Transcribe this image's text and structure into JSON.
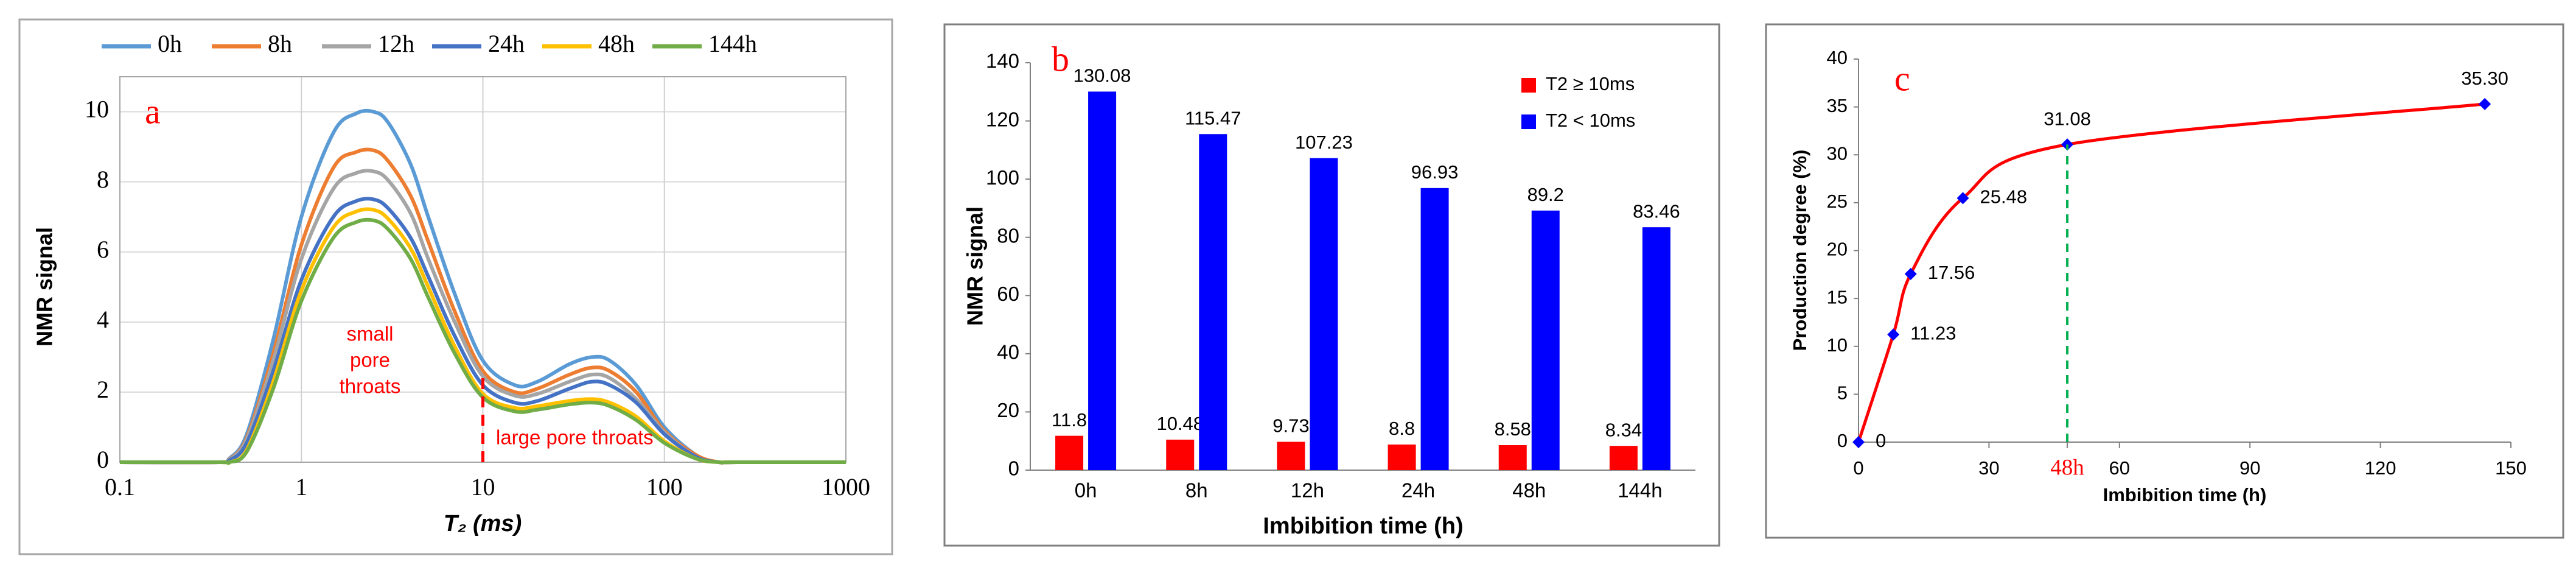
{
  "chart_data": [
    {
      "type": "line",
      "panel_label": "a",
      "x_label": "T₂ (ms)",
      "y_label": "NMR signal",
      "log_x": true,
      "xlim": [
        0.1,
        1000
      ],
      "xticks": [
        0.1,
        1,
        10,
        100,
        1000
      ],
      "ylim": [
        0,
        11
      ],
      "yticks": [
        0,
        2,
        4,
        6,
        8,
        10
      ],
      "grid": true,
      "legend": "top",
      "x": [
        0.1,
        0.35,
        0.4,
        0.5,
        0.7,
        1,
        1.5,
        2,
        2.5,
        3,
        4,
        5,
        7,
        10,
        15,
        20,
        30,
        40,
        50,
        70,
        100,
        150,
        200,
        250,
        1000
      ],
      "series": [
        {
          "name": "0h",
          "color": "#5b9bd5",
          "values": [
            0,
            0,
            0.1,
            0.8,
            3.5,
            7.0,
            9.4,
            9.95,
            10.0,
            9.7,
            8.5,
            7.0,
            4.8,
            2.9,
            2.2,
            2.3,
            2.8,
            3.0,
            2.9,
            2.2,
            1.0,
            0.2,
            0,
            0,
            0
          ]
        },
        {
          "name": "8h",
          "color": "#ed7d31",
          "values": [
            0,
            0,
            0.08,
            0.7,
            3.1,
            6.2,
            8.4,
            8.85,
            8.9,
            8.6,
            7.6,
            6.3,
            4.3,
            2.6,
            2.0,
            2.1,
            2.5,
            2.7,
            2.6,
            2.0,
            0.9,
            0.2,
            0,
            0,
            0
          ]
        },
        {
          "name": "12h",
          "color": "#a5a5a5",
          "values": [
            0,
            0,
            0.07,
            0.65,
            2.9,
            5.8,
            7.8,
            8.25,
            8.3,
            8.05,
            7.1,
            5.8,
            4.0,
            2.45,
            1.9,
            1.95,
            2.3,
            2.5,
            2.4,
            1.8,
            0.85,
            0.15,
            0,
            0,
            0
          ]
        },
        {
          "name": "24h",
          "color": "#4472c4",
          "values": [
            0,
            0,
            0.05,
            0.55,
            2.6,
            5.2,
            7.0,
            7.45,
            7.5,
            7.25,
            6.4,
            5.3,
            3.6,
            2.2,
            1.7,
            1.75,
            2.1,
            2.3,
            2.2,
            1.7,
            0.8,
            0.15,
            0,
            0,
            0
          ]
        },
        {
          "name": "48h",
          "color": "#ffc000",
          "values": [
            0,
            0,
            0,
            0.35,
            2.3,
            4.9,
            6.7,
            7.15,
            7.2,
            6.95,
            6.1,
            5.0,
            3.3,
            1.95,
            1.55,
            1.6,
            1.75,
            1.8,
            1.7,
            1.3,
            0.6,
            0.1,
            0,
            0,
            0
          ]
        },
        {
          "name": "144h",
          "color": "#70ad47",
          "values": [
            0,
            0,
            0,
            0.3,
            2.1,
            4.6,
            6.4,
            6.85,
            6.9,
            6.65,
            5.8,
            4.7,
            3.1,
            1.85,
            1.45,
            1.5,
            1.65,
            1.7,
            1.6,
            1.2,
            0.55,
            0.1,
            0,
            0,
            0
          ]
        }
      ],
      "threshold": {
        "x": 10,
        "y_top": 2.6,
        "color": "#ff0000"
      },
      "annotations": [
        [
          "small",
          "pore",
          "throats"
        ],
        [
          "large pore throats"
        ]
      ]
    },
    {
      "type": "bar",
      "panel_label": "b",
      "x_label": "Imbibition time (h)",
      "y_label": "NMR signal",
      "categories": [
        "0h",
        "8h",
        "12h",
        "24h",
        "48h",
        "144h"
      ],
      "ylim": [
        0,
        140
      ],
      "yticks": [
        0,
        20,
        40,
        60,
        80,
        100,
        120,
        140
      ],
      "legend": "upper right",
      "series": [
        {
          "name": "T2 ≥ 10ms",
          "color": "#ff0000",
          "values": [
            11.8,
            10.48,
            9.73,
            8.8,
            8.58,
            8.34
          ]
        },
        {
          "name": "T2 < 10ms",
          "color": "#0000ff",
          "values": [
            130.08,
            115.47,
            107.23,
            96.93,
            89.2,
            83.46
          ]
        }
      ]
    },
    {
      "type": "line",
      "panel_label": "c",
      "x_label": "Imbibition time (h)",
      "y_label": "Production degree (%)",
      "xlim": [
        0,
        150
      ],
      "xticks": [
        0,
        30,
        {
          "value": 48,
          "label": "48h"
        },
        60,
        90,
        120,
        150
      ],
      "ylim": [
        0,
        40
      ],
      "yticks": [
        0,
        5,
        10,
        15,
        20,
        25,
        30,
        35,
        40
      ],
      "x": [
        0,
        8,
        12,
        24,
        48,
        144
      ],
      "values": [
        0,
        11.23,
        17.56,
        25.48,
        31.08,
        35.3
      ],
      "value_labels": [
        "0",
        "11.23",
        "17.56",
        "25.48",
        "31.08",
        "35.30"
      ],
      "color": "#ff0000",
      "marker_color": "#0000ff",
      "markers": true,
      "highlight_point": 4,
      "highlight_color": "#00b050"
    }
  ]
}
